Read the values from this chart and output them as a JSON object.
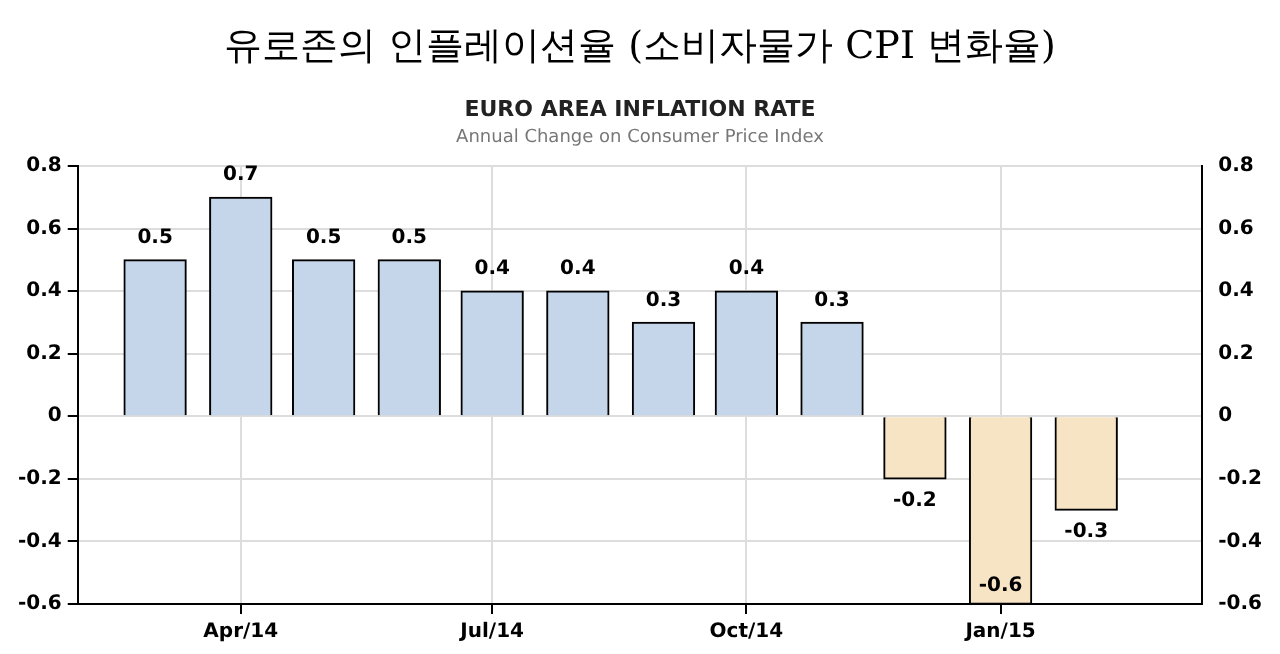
{
  "chart_data": {
    "type": "bar",
    "title": "유로존의 인플레이션율 (소비자물가 CPI 변화율)",
    "subtitle": "EURO AREA INFLATION RATE",
    "annotations": [
      "Annual Change on Consumer Price Index"
    ],
    "x": [
      "2014-03",
      "2014-04",
      "2014-05",
      "2014-06",
      "2014-07",
      "2014-08",
      "2014-09",
      "2014-10",
      "2014-11",
      "2014-12",
      "2015-01",
      "2015-02"
    ],
    "values": [
      0.5,
      0.7,
      0.5,
      0.5,
      0.4,
      0.4,
      0.3,
      0.4,
      0.3,
      -0.2,
      -0.6,
      -0.3
    ],
    "colors": [
      "#c5d5ea",
      "#c5d5ea",
      "#c5d5ea",
      "#c5d5ea",
      "#c5d5ea",
      "#c5d5ea",
      "#c5d5ea",
      "#c5d5ea",
      "#c5d5ea",
      "#f7e4c4",
      "#f7e4c4",
      "#f7e4c4"
    ],
    "xlim": [
      "2014-02-01",
      "2015-03-15"
    ],
    "xticks": [
      {
        "value": "2014-04",
        "label": "Apr/14"
      },
      {
        "value": "2014-07",
        "label": "Jul/14"
      },
      {
        "value": "2014-10",
        "label": "Oct/14"
      },
      {
        "value": "2015-01",
        "label": "Jan/15"
      }
    ],
    "ylim": [
      -0.6,
      0.8
    ],
    "yticks": [
      -0.6,
      -0.4,
      -0.2,
      0,
      0.2,
      0.4,
      0.6,
      0.8
    ],
    "y2lim": [
      -0.6,
      0.8
    ],
    "y2ticks": [
      -0.6,
      -0.4,
      -0.2,
      0,
      0.2,
      0.4,
      0.6,
      0.8
    ],
    "grid": true,
    "data_labels": true,
    "legend": false
  }
}
